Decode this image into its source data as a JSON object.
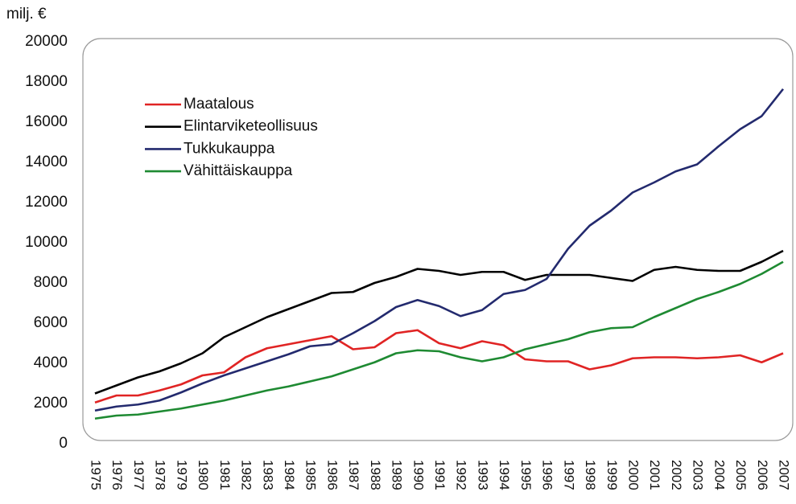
{
  "chart_data": {
    "type": "line",
    "y_label": "milj. €",
    "categories": [
      "1975",
      "1976",
      "1977",
      "1978",
      "1979",
      "1980",
      "1981",
      "1982",
      "1983",
      "1984",
      "1985",
      "1986",
      "1987",
      "1988",
      "1989",
      "1990",
      "1991",
      "1992",
      "1993",
      "1994",
      "1995",
      "1996",
      "1997",
      "1998",
      "1999",
      "2000",
      "2001",
      "2002",
      "2003",
      "2004",
      "2005",
      "2006",
      "2007"
    ],
    "series": [
      {
        "name": "Maatalous",
        "color": "#e02424",
        "values": [
          2050,
          2400,
          2400,
          2650,
          2950,
          3400,
          3550,
          4300,
          4750,
          4950,
          5150,
          5350,
          4700,
          4800,
          5500,
          5650,
          5000,
          4750,
          5100,
          4900,
          4200,
          4100,
          4100,
          3700,
          3900,
          4250,
          4300,
          4300,
          4250,
          4300,
          4400,
          4050,
          4500
        ]
      },
      {
        "name": "Elintarviketeollisuus",
        "color": "#000000",
        "values": [
          2500,
          2900,
          3300,
          3600,
          4000,
          4500,
          5300,
          5800,
          6300,
          6700,
          7100,
          7500,
          7550,
          8000,
          8300,
          8700,
          8600,
          8400,
          8550,
          8550,
          8150,
          8400,
          8400,
          8400,
          8250,
          8100,
          8650,
          8800,
          8650,
          8600,
          8600,
          9050,
          9600
        ]
      },
      {
        "name": "Tukkukauppa",
        "color": "#232a6e",
        "values": [
          1650,
          1850,
          1950,
          2150,
          2550,
          3000,
          3400,
          3750,
          4100,
          4450,
          4850,
          4950,
          5500,
          6100,
          6800,
          7150,
          6850,
          6350,
          6650,
          7450,
          7650,
          8200,
          9700,
          10850,
          11600,
          12500,
          13000,
          13550,
          13900,
          14800,
          15650,
          16300,
          17650
        ]
      },
      {
        "name": "Vähittäiskauppa",
        "color": "#1e8a32",
        "values": [
          1250,
          1400,
          1450,
          1600,
          1750,
          1950,
          2150,
          2400,
          2650,
          2850,
          3100,
          3350,
          3700,
          4050,
          4500,
          4650,
          4600,
          4300,
          4100,
          4300,
          4700,
          4950,
          5200,
          5550,
          5750,
          5800,
          6300,
          6750,
          7200,
          7550,
          7950,
          8450,
          9050
        ]
      }
    ],
    "ylim": [
      0,
      20000
    ],
    "yticks": [
      0,
      2000,
      4000,
      6000,
      8000,
      10000,
      12000,
      14000,
      16000,
      18000,
      20000
    ],
    "legend": "upper left"
  }
}
